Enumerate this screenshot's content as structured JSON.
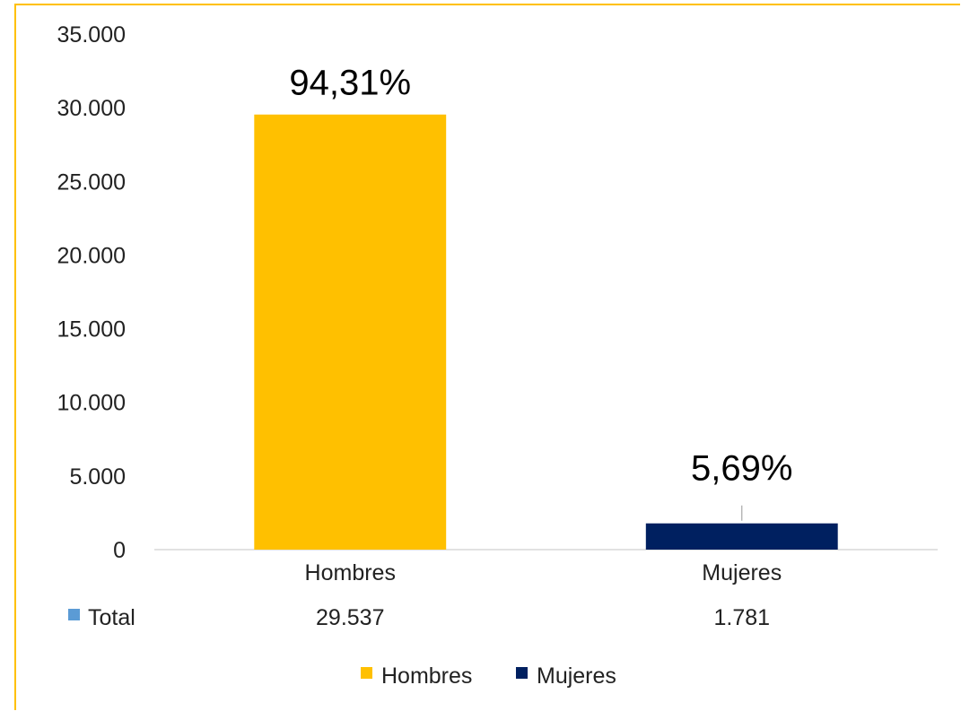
{
  "chart_data": {
    "type": "bar",
    "categories": [
      "Hombres",
      "Mujeres"
    ],
    "values": [
      29537,
      1781
    ],
    "value_labels": [
      "29.537",
      "1.781"
    ],
    "percent_labels": [
      "94,31%",
      "5,69%"
    ],
    "colors": [
      "#FFC000",
      "#002060"
    ],
    "ylim": [
      0,
      35000
    ],
    "yticks": [
      0,
      5000,
      10000,
      15000,
      20000,
      25000,
      30000,
      35000
    ],
    "ytick_labels": [
      "0",
      "5.000",
      "10.000",
      "15.000",
      "20.000",
      "25.000",
      "30.000",
      "35.000"
    ],
    "data_table": {
      "row_label": "Total",
      "row_label_color": "#5B9BD5"
    },
    "legend": {
      "position": "bottom",
      "entries": [
        {
          "name": "Hombres",
          "color": "#FFC000"
        },
        {
          "name": "Mujeres",
          "color": "#002060"
        }
      ]
    },
    "grid": false
  }
}
